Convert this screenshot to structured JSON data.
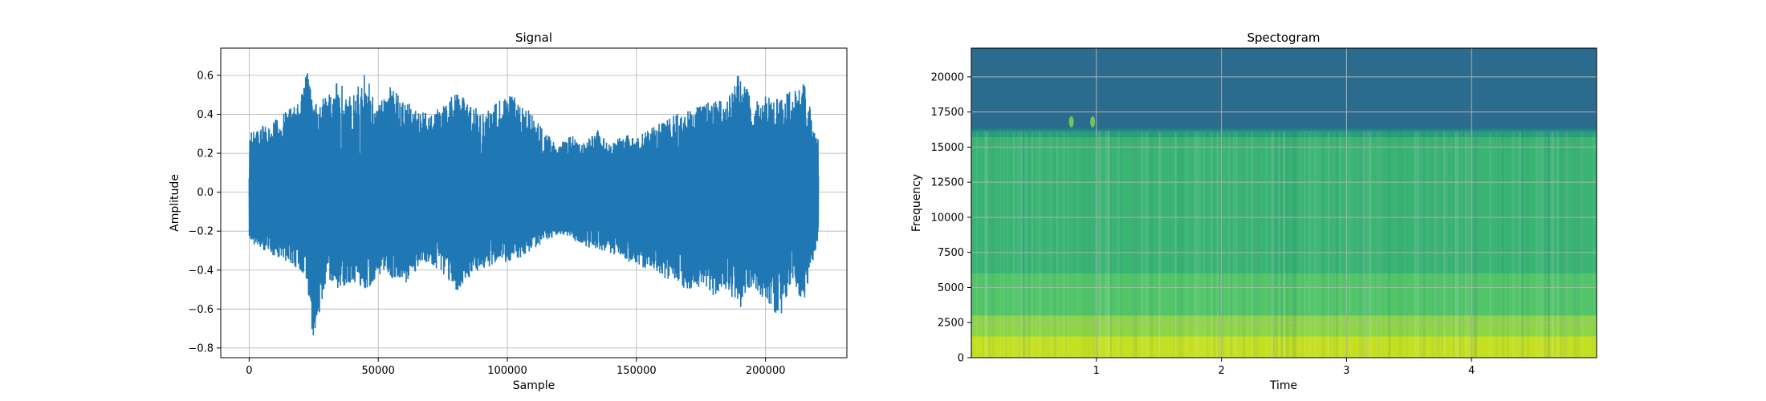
{
  "chart_data": [
    {
      "type": "line",
      "title": "Signal",
      "xlabel": "Sample",
      "ylabel": "Amplitude",
      "xlim": [
        -11000,
        231500
      ],
      "ylim": [
        -0.85,
        0.74
      ],
      "xticks": [
        0,
        50000,
        100000,
        150000,
        200000
      ],
      "xtick_labels": [
        "0",
        "50000",
        "100000",
        "150000",
        "200000"
      ],
      "yticks": [
        -0.8,
        -0.6,
        -0.4,
        -0.2,
        0.0,
        0.2,
        0.4,
        0.6
      ],
      "ytick_labels": [
        "−0.8",
        "−0.6",
        "−0.4",
        "−0.2",
        "0.0",
        "0.2",
        "0.4",
        "0.6"
      ],
      "grid": true,
      "color": "#1f77b4",
      "num_samples": 220500,
      "envelope": {
        "x": [
          0,
          10000,
          20000,
          22000,
          25000,
          30000,
          35000,
          40000,
          45000,
          50000,
          55000,
          60000,
          65000,
          70000,
          75000,
          80000,
          85000,
          90000,
          95000,
          100000,
          105000,
          110000,
          115000,
          120000,
          125000,
          130000,
          135000,
          140000,
          145000,
          150000,
          155000,
          160000,
          165000,
          170000,
          175000,
          180000,
          185000,
          190000,
          195000,
          200000,
          205000,
          210000,
          215000,
          220000
        ],
        "max": [
          0.3,
          0.38,
          0.47,
          0.67,
          0.45,
          0.5,
          0.58,
          0.49,
          0.62,
          0.45,
          0.55,
          0.48,
          0.42,
          0.4,
          0.45,
          0.52,
          0.48,
          0.4,
          0.45,
          0.52,
          0.46,
          0.4,
          0.3,
          0.25,
          0.3,
          0.26,
          0.32,
          0.24,
          0.3,
          0.28,
          0.33,
          0.36,
          0.4,
          0.42,
          0.45,
          0.48,
          0.46,
          0.64,
          0.45,
          0.5,
          0.48,
          0.52,
          0.56,
          0.28
        ],
        "min": [
          -0.26,
          -0.33,
          -0.4,
          -0.44,
          -0.78,
          -0.45,
          -0.5,
          -0.46,
          -0.52,
          -0.42,
          -0.44,
          -0.48,
          -0.4,
          -0.36,
          -0.44,
          -0.52,
          -0.44,
          -0.4,
          -0.38,
          -0.36,
          -0.34,
          -0.3,
          -0.25,
          -0.22,
          -0.24,
          -0.28,
          -0.3,
          -0.32,
          -0.35,
          -0.38,
          -0.4,
          -0.44,
          -0.46,
          -0.52,
          -0.48,
          -0.54,
          -0.5,
          -0.6,
          -0.48,
          -0.56,
          -0.66,
          -0.5,
          -0.56,
          -0.26
        ]
      }
    },
    {
      "type": "heatmap",
      "title": "Spectogram",
      "xlabel": "Time",
      "ylabel": "Frequency",
      "xlim": [
        0,
        5.0
      ],
      "ylim": [
        0,
        22050
      ],
      "xticks": [
        1,
        2,
        3,
        4
      ],
      "xtick_labels": [
        "1",
        "2",
        "3",
        "4"
      ],
      "yticks": [
        0,
        2500,
        5000,
        7500,
        10000,
        12500,
        15000,
        17500,
        20000
      ],
      "ytick_labels": [
        "0",
        "2500",
        "5000",
        "7500",
        "10000",
        "12500",
        "15000",
        "17500",
        "20000"
      ],
      "grid": true,
      "colormap": "viridis",
      "cutoff_frequency": 16200,
      "bands": [
        {
          "from": 0,
          "to": 1500,
          "color": "#c5e021"
        },
        {
          "from": 1500,
          "to": 3000,
          "color": "#8ed645"
        },
        {
          "from": 3000,
          "to": 6000,
          "color": "#52c569"
        },
        {
          "from": 6000,
          "to": 15700,
          "color": "#3ab473"
        },
        {
          "from": 15700,
          "to": 16200,
          "color": "#2a9e7c"
        },
        {
          "from": 16200,
          "to": 22050,
          "color": "#2b6c8e"
        }
      ],
      "spots": [
        {
          "time": 0.8,
          "frequency": 16800
        },
        {
          "time": 0.97,
          "frequency": 16800
        }
      ]
    }
  ]
}
